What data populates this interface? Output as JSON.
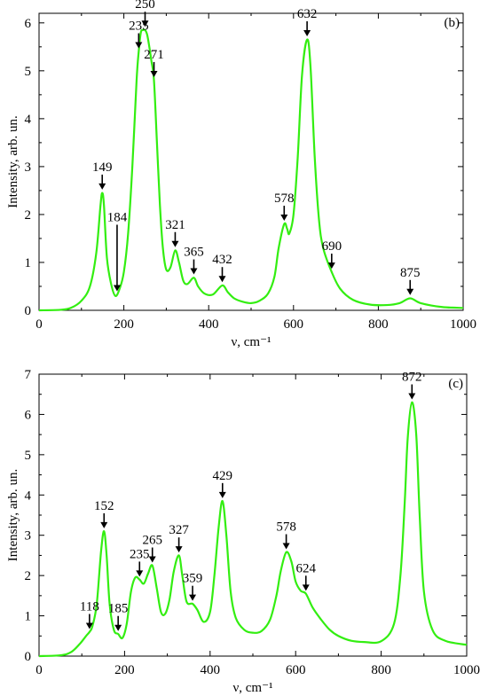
{
  "chart_data": [
    {
      "type": "line",
      "panel_label": "(b)",
      "xlabel": "ν, cm⁻¹",
      "ylabel": "Intensity, arb. un.",
      "xlim": [
        0,
        1000
      ],
      "ylim": [
        0,
        6.2
      ],
      "xticks": [
        0,
        200,
        400,
        600,
        800,
        1000
      ],
      "yticks": [
        0,
        1,
        2,
        3,
        4,
        5,
        6
      ],
      "line_color": "#33ee11",
      "series": [
        {
          "x": [
            0,
            50,
            75,
            100,
            120,
            135,
            145,
            149,
            153,
            160,
            170,
            180,
            190,
            200,
            210,
            220,
            230,
            235,
            240,
            245,
            250,
            255,
            260,
            265,
            271,
            278,
            285,
            292,
            300,
            310,
            321,
            330,
            340,
            350,
            365,
            375,
            390,
            410,
            432,
            445,
            460,
            480,
            500,
            520,
            540,
            555,
            565,
            578,
            585,
            590,
            600,
            610,
            620,
            632,
            640,
            650,
            660,
            670,
            690,
            710,
            740,
            780,
            820,
            850,
            875,
            900,
            950,
            1000
          ],
          "y": [
            0,
            0.01,
            0.05,
            0.2,
            0.5,
            1.2,
            2.2,
            2.45,
            2.2,
            1.1,
            0.55,
            0.3,
            0.45,
            0.8,
            1.6,
            3.0,
            4.8,
            5.4,
            5.8,
            5.85,
            5.85,
            5.75,
            5.5,
            5.2,
            4.8,
            3.5,
            2.2,
            1.3,
            0.85,
            0.9,
            1.25,
            1.0,
            0.62,
            0.55,
            0.68,
            0.5,
            0.35,
            0.33,
            0.52,
            0.38,
            0.25,
            0.18,
            0.15,
            0.2,
            0.35,
            0.7,
            1.3,
            1.8,
            1.7,
            1.6,
            2.0,
            3.2,
            4.9,
            5.65,
            5.1,
            3.2,
            1.9,
            1.3,
            0.8,
            0.45,
            0.22,
            0.12,
            0.11,
            0.15,
            0.25,
            0.15,
            0.07,
            0.05
          ]
        }
      ],
      "annotations": [
        {
          "text": "149",
          "x": 149,
          "y": 2.5,
          "arrow": "short"
        },
        {
          "text": "184",
          "x": 184,
          "y": 0.38,
          "arrow": "long"
        },
        {
          "text": "235",
          "x": 235,
          "y": 5.45,
          "arrow": "short"
        },
        {
          "text": "250",
          "x": 250,
          "y": 5.9,
          "arrow": "short"
        },
        {
          "text": "271",
          "x": 271,
          "y": 4.85,
          "arrow": "short"
        },
        {
          "text": "321",
          "x": 321,
          "y": 1.3,
          "arrow": "short"
        },
        {
          "text": "365",
          "x": 365,
          "y": 0.73,
          "arrow": "short"
        },
        {
          "text": "432",
          "x": 432,
          "y": 0.57,
          "arrow": "short"
        },
        {
          "text": "578",
          "x": 578,
          "y": 1.85,
          "arrow": "short"
        },
        {
          "text": "632",
          "x": 632,
          "y": 5.7,
          "arrow": "short"
        },
        {
          "text": "690",
          "x": 690,
          "y": 0.85,
          "arrow": "short"
        },
        {
          "text": "875",
          "x": 875,
          "y": 0.3,
          "arrow": "short"
        }
      ]
    },
    {
      "type": "line",
      "panel_label": "(c)",
      "xlabel": "ν, cm⁻¹",
      "ylabel": "Intensity, arb. un.",
      "xlim": [
        0,
        1000
      ],
      "ylim": [
        0,
        7
      ],
      "xticks": [
        0,
        200,
        400,
        600,
        800,
        1000
      ],
      "yticks": [
        0,
        1,
        2,
        3,
        4,
        5,
        6,
        7
      ],
      "line_color": "#33ee11",
      "series": [
        {
          "x": [
            0,
            50,
            75,
            95,
            110,
            118,
            125,
            135,
            145,
            152,
            158,
            165,
            175,
            185,
            195,
            205,
            215,
            225,
            235,
            245,
            255,
            265,
            275,
            285,
            295,
            305,
            315,
            327,
            335,
            345,
            359,
            370,
            385,
            400,
            410,
            420,
            429,
            438,
            448,
            460,
            480,
            500,
            520,
            540,
            555,
            565,
            578,
            590,
            600,
            612,
            624,
            640,
            660,
            680,
            700,
            730,
            760,
            800,
            830,
            845,
            855,
            862,
            872,
            882,
            890,
            900,
            920,
            950,
            1000
          ],
          "y": [
            0,
            0.02,
            0.1,
            0.3,
            0.5,
            0.6,
            0.75,
            1.3,
            2.6,
            3.1,
            2.5,
            1.3,
            0.65,
            0.55,
            0.45,
            0.8,
            1.6,
            1.95,
            1.9,
            1.8,
            2.05,
            2.25,
            1.7,
            1.1,
            1.05,
            1.4,
            2.1,
            2.5,
            2.0,
            1.35,
            1.3,
            1.15,
            0.85,
            1.1,
            2.0,
            3.2,
            3.85,
            3.0,
            1.6,
            0.95,
            0.65,
            0.58,
            0.62,
            0.9,
            1.5,
            2.1,
            2.58,
            2.35,
            1.85,
            1.62,
            1.55,
            1.2,
            0.9,
            0.65,
            0.5,
            0.38,
            0.35,
            0.37,
            0.8,
            2.0,
            3.8,
            5.4,
            6.3,
            5.5,
            3.5,
            1.6,
            0.65,
            0.38,
            0.28
          ]
        }
      ],
      "annotations": [
        {
          "text": "118",
          "x": 118,
          "y": 0.65,
          "arrow": "short"
        },
        {
          "text": "152",
          "x": 152,
          "y": 3.15,
          "arrow": "short"
        },
        {
          "text": "185",
          "x": 185,
          "y": 0.6,
          "arrow": "short"
        },
        {
          "text": "235",
          "x": 235,
          "y": 1.95,
          "arrow": "short"
        },
        {
          "text": "265",
          "x": 265,
          "y": 2.3,
          "arrow": "short"
        },
        {
          "text": "327",
          "x": 327,
          "y": 2.55,
          "arrow": "short"
        },
        {
          "text": "359",
          "x": 359,
          "y": 1.35,
          "arrow": "short"
        },
        {
          "text": "429",
          "x": 429,
          "y": 3.9,
          "arrow": "short"
        },
        {
          "text": "578",
          "x": 578,
          "y": 2.63,
          "arrow": "short"
        },
        {
          "text": "624",
          "x": 624,
          "y": 1.6,
          "arrow": "short"
        },
        {
          "text": "872",
          "x": 872,
          "y": 6.35,
          "arrow": "short"
        }
      ]
    }
  ]
}
